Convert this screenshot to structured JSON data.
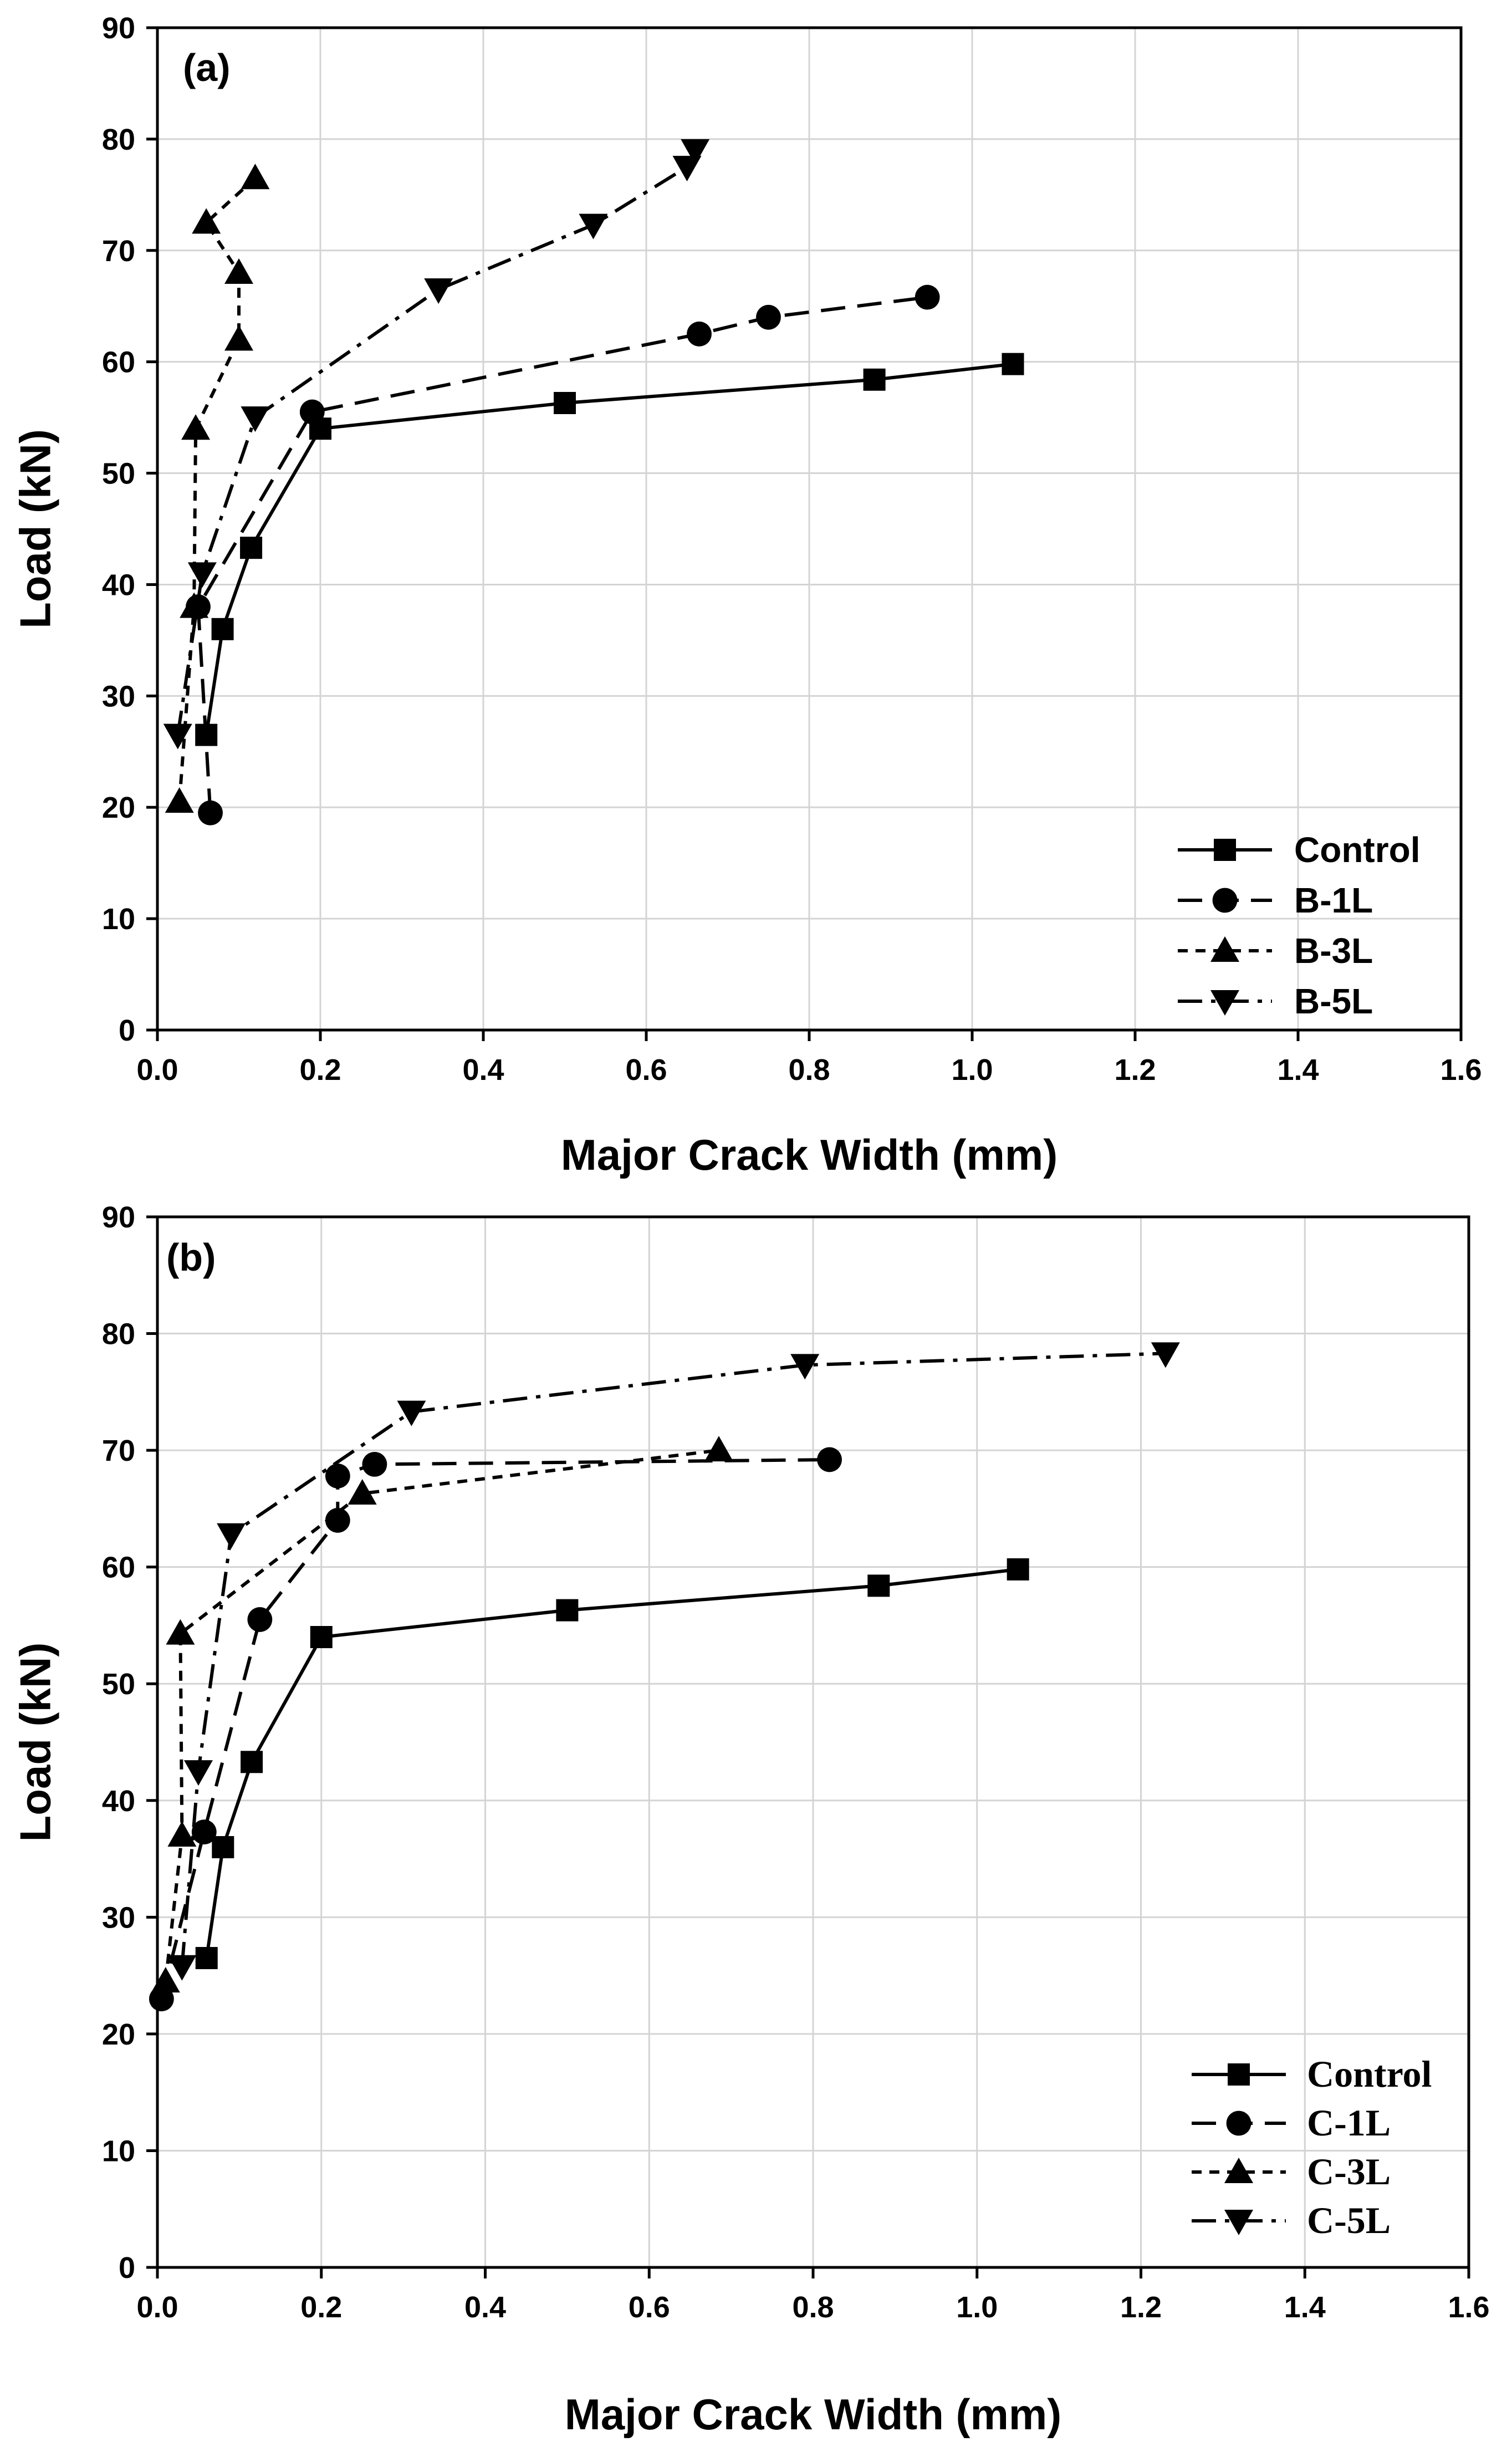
{
  "chart_data": [
    {
      "panel_label": "(a)",
      "type": "line",
      "xlabel": "Major Crack Width (mm)",
      "ylabel": "Load (kN)",
      "xlim": [
        0.0,
        1.6
      ],
      "ylim": [
        0,
        90
      ],
      "x_ticks": [
        "0.0",
        "0.2",
        "0.4",
        "0.6",
        "0.8",
        "1.0",
        "1.2",
        "1.4",
        "1.6"
      ],
      "y_ticks": [
        "0",
        "10",
        "20",
        "30",
        "40",
        "50",
        "60",
        "70",
        "80",
        "90"
      ],
      "grid": true,
      "legend_position": "bottom-right",
      "series": [
        {
          "name": "Control",
          "marker": "square",
          "dash": "solid",
          "x": [
            0.06,
            0.08,
            0.115,
            0.2,
            0.5,
            0.88,
            1.05
          ],
          "y": [
            26.5,
            36,
            43.3,
            54,
            56.3,
            58.4,
            59.8
          ]
        },
        {
          "name": "B-1L",
          "marker": "circle",
          "dash": "dash",
          "x": [
            0.065,
            0.05,
            0.19,
            0.665,
            0.75,
            0.945
          ],
          "y": [
            19.5,
            38,
            55.5,
            62.5,
            64,
            65.8
          ]
        },
        {
          "name": "B-3L",
          "marker": "triangle-up",
          "dash": "short-dash",
          "x": [
            0.027,
            0.045,
            0.047,
            0.1,
            0.1,
            0.06,
            0.12
          ],
          "y": [
            20.5,
            38,
            54,
            62,
            68,
            72.5,
            76.5
          ]
        },
        {
          "name": "B-5L",
          "marker": "triangle-down",
          "dash": "dash-dot",
          "x": [
            0.025,
            0.055,
            0.12,
            0.345,
            0.535,
            0.65,
            0.66
          ],
          "y": [
            26.5,
            41,
            55,
            66.5,
            72.3,
            77.5,
            79
          ]
        }
      ]
    },
    {
      "panel_label": "(b)",
      "type": "line",
      "xlabel": "Major Crack Width (mm)",
      "ylabel": "Load (kN)",
      "xlim": [
        0.0,
        1.6
      ],
      "ylim": [
        0,
        90
      ],
      "x_ticks": [
        "0.0",
        "0.2",
        "0.4",
        "0.6",
        "0.8",
        "1.0",
        "1.2",
        "1.4",
        "1.6"
      ],
      "y_ticks": [
        "0",
        "10",
        "20",
        "30",
        "40",
        "50",
        "60",
        "70",
        "80",
        "90"
      ],
      "grid": true,
      "legend_position": "bottom-right",
      "series": [
        {
          "name": "Control",
          "marker": "square",
          "dash": "solid",
          "x": [
            0.06,
            0.08,
            0.115,
            0.2,
            0.5,
            0.88,
            1.05
          ],
          "y": [
            26.5,
            36,
            43.3,
            54,
            56.3,
            58.4,
            59.8
          ]
        },
        {
          "name": "C-1L",
          "marker": "circle",
          "dash": "dash",
          "x": [
            0.005,
            0.057,
            0.125,
            0.22,
            0.22,
            0.265,
            0.82
          ],
          "y": [
            23,
            37.3,
            55.5,
            64,
            67.8,
            68.8,
            69.2
          ]
        },
        {
          "name": "C-3L",
          "marker": "triangle-up",
          "dash": "short-dash",
          "x": [
            0.01,
            0.03,
            0.028,
            0.25,
            0.685
          ],
          "y": [
            24.5,
            37,
            54.3,
            66.3,
            70
          ]
        },
        {
          "name": "C-5L",
          "marker": "triangle-down",
          "dash": "dash-dot",
          "x": [
            0.03,
            0.05,
            0.09,
            0.31,
            0.79,
            1.23
          ],
          "y": [
            25.8,
            42.5,
            62.8,
            73.3,
            77.3,
            78.3
          ]
        }
      ]
    }
  ]
}
